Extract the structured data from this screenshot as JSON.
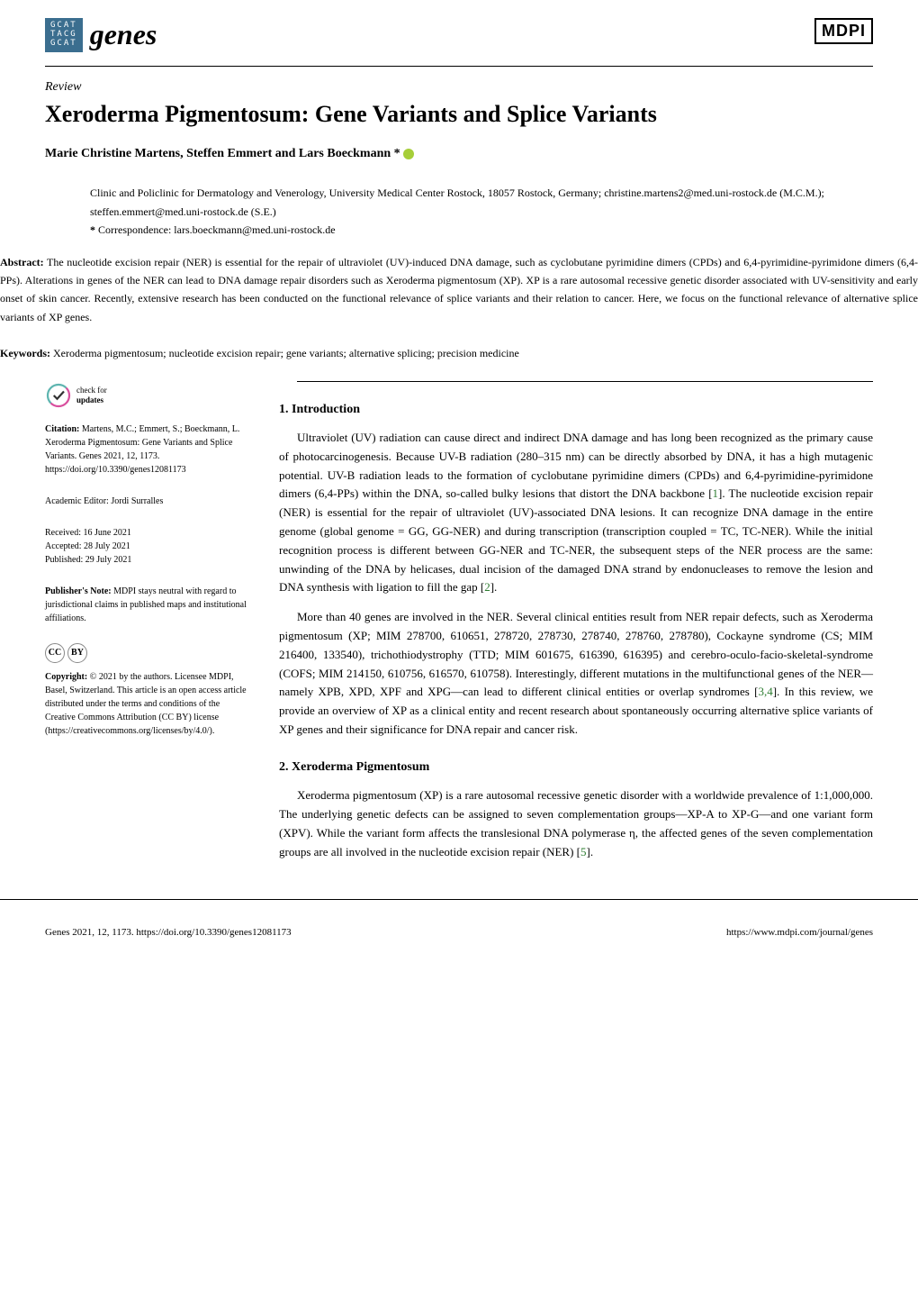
{
  "header": {
    "logo_lines": [
      "GCAT",
      "TACG",
      "GCAT"
    ],
    "journal_name": "genes",
    "publisher_logo": "MDPI"
  },
  "article_type": "Review",
  "title": "Xeroderma Pigmentosum: Gene Variants and Splice Variants",
  "authors": "Marie Christine Martens, Steffen Emmert and Lars Boeckmann *",
  "affiliation": {
    "text": "Clinic and Policlinic for Dermatology and Venerology, University Medical Center Rostock, 18057 Rostock, Germany; christine.martens2@med.uni-rostock.de (M.C.M.); steffen.emmert@med.uni-rostock.de (S.E.)",
    "correspondence_label": "*",
    "correspondence": "Correspondence: lars.boeckmann@med.uni-rostock.de"
  },
  "abstract_label": "Abstract:",
  "abstract": "The nucleotide excision repair (NER) is essential for the repair of ultraviolet (UV)-induced DNA damage, such as cyclobutane pyrimidine dimers (CPDs) and 6,4-pyrimidine-pyrimidone dimers (6,4-PPs). Alterations in genes of the NER can lead to DNA damage repair disorders such as Xeroderma pigmentosum (XP). XP is a rare autosomal recessive genetic disorder associated with UV-sensitivity and early onset of skin cancer. Recently, extensive research has been conducted on the functional relevance of splice variants and their relation to cancer. Here, we focus on the functional relevance of alternative splice variants of XP genes.",
  "keywords_label": "Keywords:",
  "keywords": "Xeroderma pigmentosum; nucleotide excision repair; gene variants; alternative splicing; precision medicine",
  "sidebar": {
    "check_updates_l1": "check for",
    "check_updates_l2": "updates",
    "citation_label": "Citation:",
    "citation": "Martens, M.C.; Emmert, S.; Boeckmann, L. Xeroderma Pigmentosum: Gene Variants and Splice Variants. Genes 2021, 12, 1173. https://doi.org/10.3390/genes12081173",
    "editor_label": "Academic Editor:",
    "editor": "Jordi Surralles",
    "received_label": "Received:",
    "received": "16 June 2021",
    "accepted_label": "Accepted:",
    "accepted": "28 July 2021",
    "published_label": "Published:",
    "published": "29 July 2021",
    "publishers_note_label": "Publisher's Note:",
    "publishers_note": "MDPI stays neutral with regard to jurisdictional claims in published maps and institutional affiliations.",
    "copyright_label": "Copyright:",
    "copyright": "© 2021 by the authors. Licensee MDPI, Basel, Switzerland. This article is an open access article distributed under the terms and conditions of the Creative Commons Attribution (CC BY) license (https://creativecommons.org/licenses/by/4.0/)."
  },
  "sections": {
    "intro_heading": "1. Introduction",
    "intro_p1": "Ultraviolet (UV) radiation can cause direct and indirect DNA damage and has long been recognized as the primary cause of photocarcinogenesis. Because UV-B radiation (280–315 nm) can be directly absorbed by DNA, it has a high mutagenic potential. UV-B radiation leads to the formation of cyclobutane pyrimidine dimers (CPDs) and 6,4-pyrimidine-pyrimidone dimers (6,4-PPs) within the DNA, so-called bulky lesions that distort the DNA backbone [1]. The nucleotide excision repair (NER) is essential for the repair of ultraviolet (UV)-associated DNA lesions. It can recognize DNA damage in the entire genome (global genome = GG, GG-NER) and during transcription (transcription coupled = TC, TC-NER). While the initial recognition process is different between GG-NER and TC-NER, the subsequent steps of the NER process are the same: unwinding of the DNA by helicases, dual incision of the damaged DNA strand by endonucleases to remove the lesion and DNA synthesis with ligation to fill the gap [2].",
    "intro_p2": "More than 40 genes are involved in the NER. Several clinical entities result from NER repair defects, such as Xeroderma pigmentosum (XP; MIM 278700, 610651, 278720, 278730, 278740, 278760, 278780), Cockayne syndrome (CS; MIM 216400, 133540), trichothiodystrophy (TTD; MIM 601675, 616390, 616395) and cerebro-oculo-facio-skeletal-syndrome (COFS; MIM 214150, 610756, 616570, 610758). Interestingly, different mutations in the multifunctional genes of the NER—namely XPB, XPD, XPF and XPG—can lead to different clinical entities or overlap syndromes [3,4]. In this review, we provide an overview of XP as a clinical entity and recent research about spontaneously occurring alternative splice variants of XP genes and their significance for DNA repair and cancer risk.",
    "xp_heading": "2. Xeroderma Pigmentosum",
    "xp_p1": "Xeroderma pigmentosum (XP) is a rare autosomal recessive genetic disorder with a worldwide prevalence of 1:1,000,000. The underlying genetic defects can be assigned to seven complementation groups—XP-A to XP-G—and one variant form (XPV). While the variant form affects the translesional DNA polymerase η, the affected genes of the seven complementation groups are all involved in the nucleotide excision repair (NER) [5]."
  },
  "footer": {
    "left": "Genes 2021, 12, 1173. https://doi.org/10.3390/genes12081173",
    "right": "https://www.mdpi.com/journal/genes"
  },
  "colors": {
    "logo_bg": "#3b6e8f",
    "ref_link": "#2e7d32",
    "orcid": "#a6ce39"
  }
}
